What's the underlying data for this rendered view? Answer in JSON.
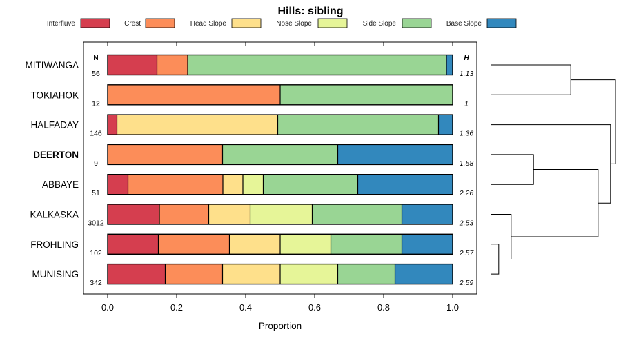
{
  "chart_data": {
    "type": "bar",
    "orientation": "horizontal",
    "stacked": true,
    "title": "Hills: sibling",
    "xlabel": "Proportion",
    "ylabel": "",
    "xlim": [
      0,
      1
    ],
    "xticks": [
      "0.0",
      "0.2",
      "0.4",
      "0.6",
      "0.8",
      "1.0"
    ],
    "xtick_values": [
      0,
      0.2,
      0.4,
      0.6,
      0.8,
      1.0
    ],
    "n_header": "N",
    "h_header": "H",
    "legend_position": "top",
    "categories": [
      "MITIWANGA",
      "TOKIAHOK",
      "HALFADAY",
      "DEERTON",
      "ABBAYE",
      "KALKASKA",
      "FROHLING",
      "MUNISING"
    ],
    "highlighted": [
      "DEERTON"
    ],
    "n": [
      "56",
      "12",
      "146",
      "9",
      "51",
      "3012",
      "102",
      "342"
    ],
    "h": [
      "1.13",
      "1",
      "1.36",
      "1.58",
      "2.26",
      "2.53",
      "2.57",
      "2.59"
    ],
    "series": [
      {
        "name": "Interfluve",
        "color": "#d53e4f",
        "values": [
          0.143,
          0,
          0.027,
          0,
          0.059,
          0.15,
          0.147,
          0.167
        ]
      },
      {
        "name": "Crest",
        "color": "#fc8d59",
        "values": [
          0.089,
          0.5,
          0,
          0.333,
          0.275,
          0.143,
          0.206,
          0.166
        ]
      },
      {
        "name": "Head Slope",
        "color": "#fee08b",
        "values": [
          0,
          0,
          0.466,
          0,
          0.058,
          0.12,
          0.147,
          0.167
        ]
      },
      {
        "name": "Nose Slope",
        "color": "#e6f598",
        "values": [
          0,
          0,
          0,
          0,
          0.059,
          0.18,
          0.147,
          0.167
        ]
      },
      {
        "name": "Side Slope",
        "color": "#99d594",
        "values": [
          0.75,
          0.5,
          0.466,
          0.334,
          0.274,
          0.26,
          0.206,
          0.166
        ]
      },
      {
        "name": "Base Slope",
        "color": "#3288bd",
        "values": [
          0.018,
          0,
          0.041,
          0.333,
          0.275,
          0.147,
          0.147,
          0.167
        ]
      }
    ],
    "dendrogram": {
      "description": "hierarchical clustering of series",
      "merges": [
        {
          "left": "MITIWANGA",
          "right": "TOKIAHOK",
          "height": 0.32
        },
        {
          "left": "DEERTON",
          "right": "ABBAYE",
          "height": 0.17
        },
        {
          "left": "FROHLING",
          "right": "MUNISING",
          "height": 0.03
        },
        {
          "left": "KALKASKA",
          "right": "FROHLING+MUNISING",
          "height": 0.08
        },
        {
          "left": "DEERTON+ABBAYE",
          "right": "KALKASKA+FROHLING+MUNISING",
          "height": 0.43
        },
        {
          "left": "HALFADAY",
          "right": "DEERTON+ABBAYE+KALKASKA+FROHLING+MUNISING",
          "height": 0.48
        },
        {
          "left": "MITIWANGA+TOKIAHOK",
          "right": "HALFADAY+DEERTON+ABBAYE+KALKASKA+FROHLING+MUNISING",
          "height": 0.5
        }
      ]
    }
  }
}
